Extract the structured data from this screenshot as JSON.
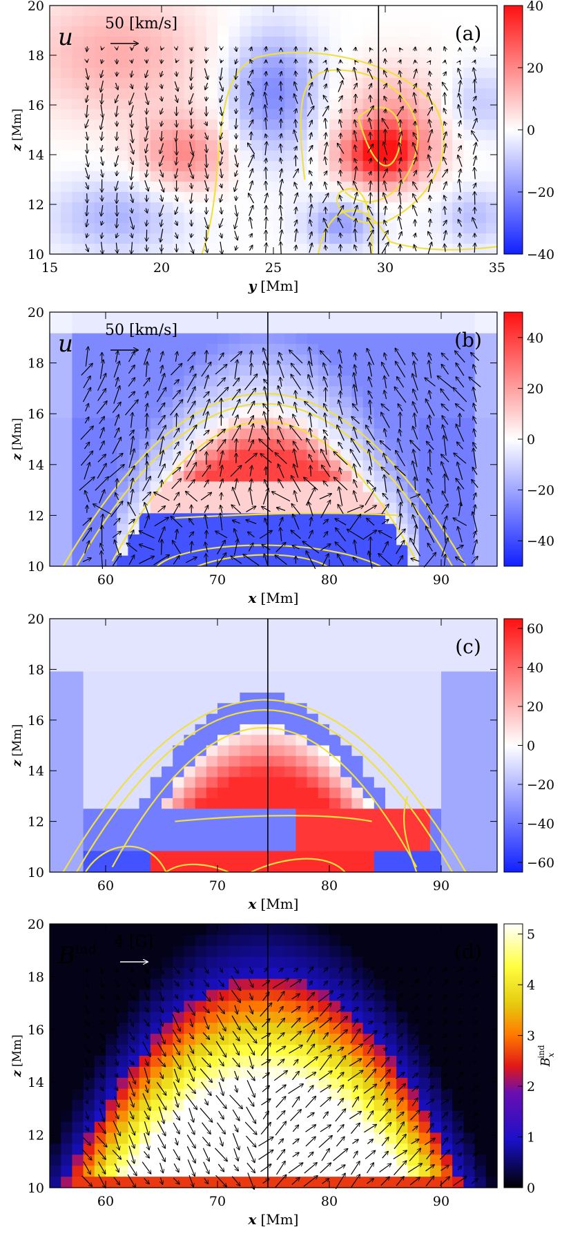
{
  "panels": [
    {
      "id": "a",
      "panel_label": "(a)",
      "xlabel_var": "y",
      "xlabel_unit": "[Mm]",
      "ylabel_var": "z",
      "ylabel_unit": "[Mm]",
      "x_ticks": [
        "15",
        "20",
        "25",
        "30",
        "35"
      ],
      "y_ticks": [
        "10",
        "12",
        "14",
        "16",
        "18",
        "20"
      ],
      "cbar_ticks": [
        "40",
        "20",
        "0",
        "−20",
        "−40"
      ],
      "vector_symbol": "u",
      "vector_ref_label": "50 [km/s]",
      "vline_label": ""
    },
    {
      "id": "b",
      "panel_label": "(b)",
      "xlabel_var": "x",
      "xlabel_unit": "[Mm]",
      "ylabel_var": "z",
      "ylabel_unit": "[Mm]",
      "x_ticks": [
        "60",
        "70",
        "80",
        "90"
      ],
      "y_ticks": [
        "10",
        "12",
        "14",
        "16",
        "18",
        "20"
      ],
      "cbar_ticks": [
        "40",
        "20",
        "0",
        "−20",
        "−40"
      ],
      "vector_symbol": "u",
      "vector_ref_label": "50 [km/s]"
    },
    {
      "id": "c",
      "panel_label": "(c)",
      "xlabel_var": "x",
      "xlabel_unit": "[Mm]",
      "ylabel_var": "z",
      "ylabel_unit": "[Mm]",
      "x_ticks": [
        "60",
        "70",
        "80",
        "90"
      ],
      "y_ticks": [
        "10",
        "12",
        "14",
        "16",
        "18",
        "20"
      ],
      "cbar_ticks": [
        "60",
        "40",
        "20",
        "0",
        "−20",
        "−40",
        "−60"
      ]
    },
    {
      "id": "d",
      "panel_label": "(d)",
      "xlabel_var": "x",
      "xlabel_unit": "[Mm]",
      "ylabel_var": "z",
      "ylabel_unit": "[Mm]",
      "x_ticks": [
        "60",
        "70",
        "80",
        "90"
      ],
      "y_ticks": [
        "10",
        "12",
        "14",
        "16",
        "18",
        "20"
      ],
      "cbar_ticks": [
        "5",
        "4",
        "3",
        "2",
        "1",
        "0"
      ],
      "vector_symbol": "B",
      "vector_symbol_sup": "ind",
      "vector_ref_label": "4 [G]",
      "cbar_label": "B",
      "cbar_label_sub": "x",
      "cbar_label_sup": "ind"
    }
  ],
  "chart_data": [
    {
      "type": "heatmap",
      "panel": "a",
      "colormap": "blue-white-red",
      "x_range": [
        15,
        35
      ],
      "y_range": [
        10,
        20
      ],
      "clim": [
        -40,
        40
      ],
      "vertical_line_x": 29.7,
      "vectors": "velocity arrows",
      "contours": "yellow"
    },
    {
      "type": "heatmap",
      "panel": "b",
      "colormap": "blue-white-red",
      "x_range": [
        55,
        95
      ],
      "y_range": [
        10,
        20
      ],
      "clim": [
        -50,
        50
      ],
      "vertical_line_x": 74.5,
      "vectors": "velocity arrows",
      "contours": "yellow"
    },
    {
      "type": "heatmap",
      "panel": "c",
      "colormap": "blue-white-red",
      "x_range": [
        55,
        95
      ],
      "y_range": [
        10,
        20
      ],
      "clim": [
        -65,
        65
      ],
      "vertical_line_x": 74.5,
      "contours": "yellow"
    },
    {
      "type": "heatmap",
      "panel": "d",
      "colormap": "black-blue-red-yellow-white",
      "x_range": [
        55,
        95
      ],
      "y_range": [
        10,
        20
      ],
      "clim": [
        0,
        5.2
      ],
      "vertical_line_x": 74.5,
      "vectors": "induced field arrows"
    }
  ]
}
